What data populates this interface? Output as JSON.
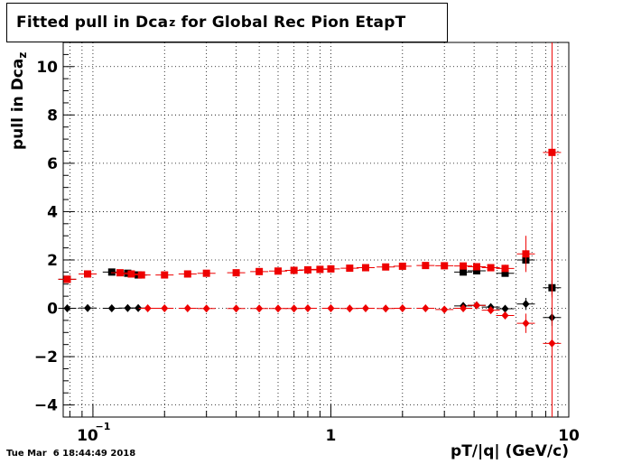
{
  "title": {
    "prefix": "Fitted pull in Dca",
    "sub": "z",
    "suffix": " for Global Rec Pion EtapT"
  },
  "ylabel": {
    "prefix": "pull in Dca",
    "sub": "z"
  },
  "xlabel": "pT/|q| (GeV/c)",
  "timestamp": "Tue Mar  6 18:44:49 2018",
  "chart_data": {
    "type": "scatter",
    "title": "Fitted pull in Dca_z for Global Rec Pion EtapT",
    "xlabel": "pT/|q| (GeV/c)",
    "ylabel": "pull in Dca_z",
    "xscale": "log",
    "xlim": [
      0.075,
      10
    ],
    "ylim": [
      -4.5,
      11
    ],
    "grid": true,
    "x_ticks": [
      {
        "v": 0.1,
        "label": "10",
        "exp": "−1"
      },
      {
        "v": 1,
        "label": "1",
        "exp": ""
      },
      {
        "v": 10,
        "label": "10",
        "exp": ""
      }
    ],
    "y_ticks": [
      -4,
      -2,
      0,
      2,
      4,
      6,
      8,
      10
    ],
    "y_tick_labels": [
      "−4",
      "−2",
      "0",
      "2",
      "4",
      "6",
      "8",
      "10"
    ],
    "series": [
      {
        "color": "#000000",
        "marker": "square",
        "points": [
          [
            0.078,
            1.2
          ],
          [
            0.095,
            1.42
          ],
          [
            0.12,
            1.5
          ],
          [
            0.14,
            1.45
          ],
          [
            0.155,
            1.38
          ],
          [
            3.6,
            1.5
          ],
          [
            4.1,
            1.55
          ],
          [
            5.4,
            1.45
          ],
          [
            6.6,
            2.0
          ],
          [
            8.5,
            0.85
          ]
        ],
        "errors": [
          0.06,
          0.06,
          0.06,
          0.06,
          0.06,
          0.08,
          0.08,
          0.12,
          0.2,
          0.3
        ]
      },
      {
        "color": "#000000",
        "marker": "diamond",
        "points": [
          [
            0.078,
            0.0
          ],
          [
            0.095,
            0.01
          ],
          [
            0.12,
            0.0
          ],
          [
            0.14,
            0.01
          ],
          [
            0.155,
            0.01
          ],
          [
            3.6,
            0.1
          ],
          [
            4.1,
            0.12
          ],
          [
            4.7,
            0.05
          ],
          [
            5.4,
            -0.02
          ],
          [
            6.6,
            0.18
          ],
          [
            8.5,
            -0.38
          ]
        ],
        "errors": [
          0.05,
          0.05,
          0.05,
          0.05,
          0.05,
          0.08,
          0.08,
          0.1,
          0.1,
          0.25,
          0.35
        ]
      },
      {
        "color": "#ee0000",
        "marker": "square",
        "points": [
          [
            0.078,
            1.2
          ],
          [
            0.095,
            1.42
          ],
          [
            0.13,
            1.47
          ],
          [
            0.145,
            1.42
          ],
          [
            0.16,
            1.38
          ],
          [
            0.2,
            1.38
          ],
          [
            0.25,
            1.42
          ],
          [
            0.3,
            1.45
          ],
          [
            0.4,
            1.47
          ],
          [
            0.5,
            1.52
          ],
          [
            0.6,
            1.54
          ],
          [
            0.7,
            1.57
          ],
          [
            0.8,
            1.59
          ],
          [
            0.9,
            1.61
          ],
          [
            1.0,
            1.63
          ],
          [
            1.2,
            1.66
          ],
          [
            1.4,
            1.68
          ],
          [
            1.7,
            1.71
          ],
          [
            2.0,
            1.74
          ],
          [
            2.5,
            1.77
          ],
          [
            3.0,
            1.76
          ],
          [
            3.6,
            1.75
          ],
          [
            4.1,
            1.72
          ],
          [
            4.7,
            1.68
          ],
          [
            5.4,
            1.65
          ],
          [
            6.6,
            2.25
          ],
          [
            8.5,
            6.45
          ]
        ],
        "errors": [
          0.06,
          0.06,
          0.05,
          0.05,
          0.05,
          0.04,
          0.04,
          0.04,
          0.04,
          0.04,
          0.04,
          0.04,
          0.04,
          0.04,
          0.04,
          0.04,
          0.05,
          0.05,
          0.05,
          0.06,
          0.06,
          0.08,
          0.08,
          0.1,
          0.15,
          0.75,
          6.0
        ]
      },
      {
        "color": "#ee0000",
        "marker": "diamond",
        "points": [
          [
            0.17,
            0.0
          ],
          [
            0.2,
            0.0
          ],
          [
            0.25,
            0.0
          ],
          [
            0.3,
            -0.01
          ],
          [
            0.4,
            -0.01
          ],
          [
            0.5,
            -0.01
          ],
          [
            0.6,
            -0.01
          ],
          [
            0.7,
            -0.01
          ],
          [
            0.8,
            0.0
          ],
          [
            1.0,
            0.0
          ],
          [
            1.2,
            -0.01
          ],
          [
            1.4,
            0.0
          ],
          [
            1.7,
            -0.01
          ],
          [
            2.0,
            0.0
          ],
          [
            2.5,
            0.0
          ],
          [
            3.0,
            -0.05
          ],
          [
            3.6,
            0.0
          ],
          [
            4.1,
            0.12
          ],
          [
            4.7,
            -0.08
          ],
          [
            5.4,
            -0.3
          ],
          [
            6.6,
            -0.62
          ],
          [
            8.5,
            -1.45
          ]
        ],
        "errors": [
          0.03,
          0.03,
          0.03,
          0.03,
          0.03,
          0.03,
          0.03,
          0.03,
          0.03,
          0.03,
          0.03,
          0.03,
          0.03,
          0.04,
          0.04,
          0.05,
          0.06,
          0.08,
          0.1,
          0.15,
          0.4,
          5.0
        ]
      }
    ]
  }
}
